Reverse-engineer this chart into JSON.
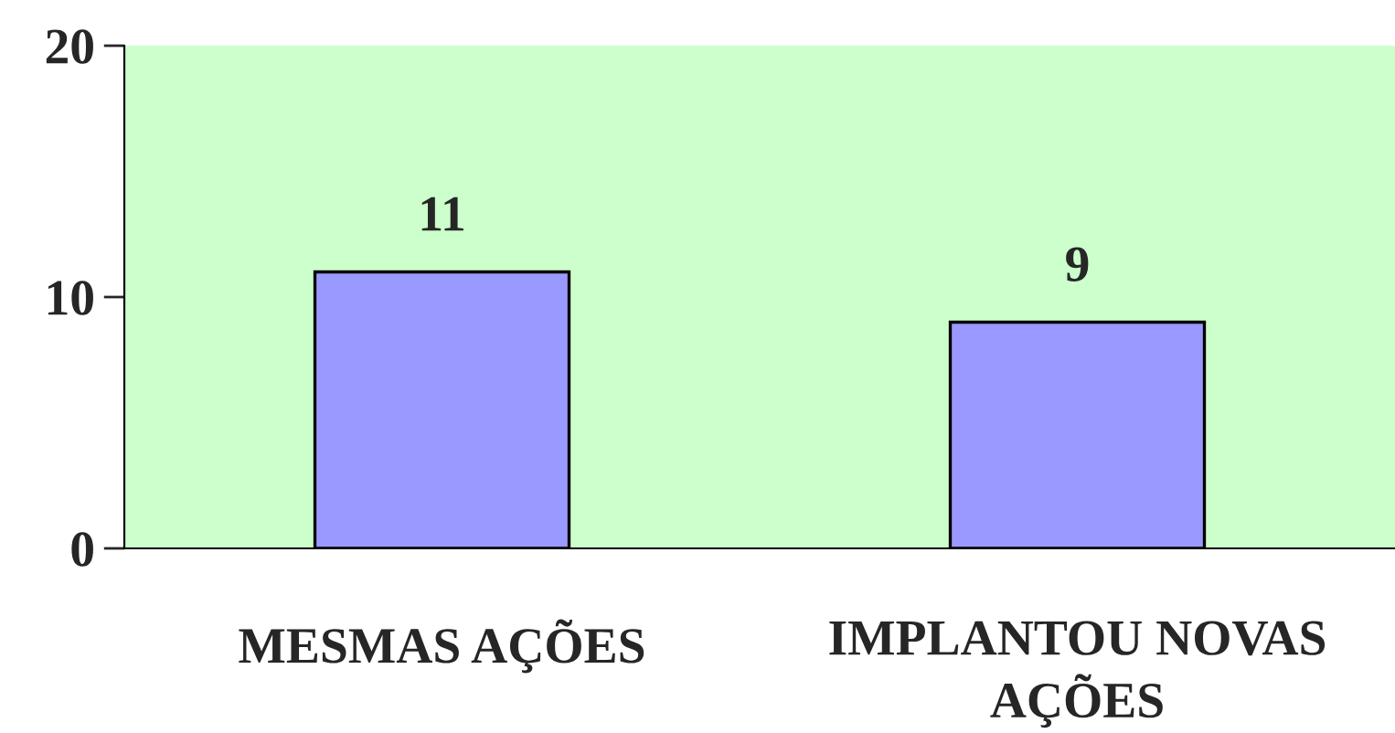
{
  "chart_data": {
    "type": "bar",
    "categories": [
      "MESMAS AÇÕES",
      "IMPLANTOU NOVAS AÇÕES"
    ],
    "values": [
      11,
      9
    ],
    "color": "#9999ff",
    "ylim": [
      0,
      20
    ],
    "yticks": [
      0,
      10,
      20
    ],
    "grid": false,
    "data_labels": true,
    "legend": false
  }
}
